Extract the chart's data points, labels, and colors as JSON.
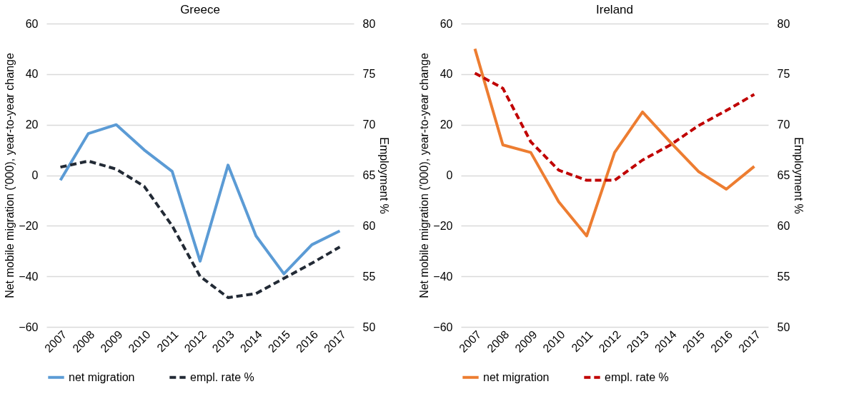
{
  "chart_data": [
    {
      "type": "line",
      "title": "Greece",
      "categories": [
        "2007",
        "2008",
        "2009",
        "2010",
        "2011",
        "2012",
        "2013",
        "2014",
        "2015",
        "2016",
        "2017"
      ],
      "ylabel": "Net mobile migration ('000), year-to-year change",
      "y2label": "Employment %",
      "ylim": [
        -60,
        60
      ],
      "yticks": [
        -60,
        -40,
        -20,
        0,
        20,
        40,
        60
      ],
      "y2lim": [
        50,
        80
      ],
      "y2ticks": [
        50,
        55,
        60,
        65,
        70,
        75,
        80
      ],
      "grid": "y",
      "legend": "bottom",
      "series": [
        {
          "name": "net migration",
          "color": "#5b9bd5",
          "line_style": "solid",
          "values": [
            -2,
            16.5,
            20,
            10,
            1.5,
            -34,
            4,
            -24,
            -39,
            -27.5,
            -22
          ]
        },
        {
          "name": "empl. rate %",
          "color": "#222a35",
          "line_style": "dashed",
          "axis": "y2",
          "values": [
            65.8,
            66.4,
            65.6,
            63.9,
            60,
            55,
            52.9,
            53.3,
            54.8,
            56.3,
            57.9
          ]
        }
      ]
    },
    {
      "type": "line",
      "title": "Ireland",
      "categories": [
        "2007",
        "2008",
        "2009",
        "2010",
        "2011",
        "2012",
        "2013",
        "2014",
        "2015",
        "2016",
        "2017"
      ],
      "ylabel": "Net mobile migration ('000), year-to-year change",
      "y2label": "Employment %",
      "ylim": [
        -60,
        60
      ],
      "yticks": [
        -60,
        -40,
        -20,
        0,
        20,
        40,
        60
      ],
      "y2lim": [
        50,
        80
      ],
      "y2ticks": [
        50,
        55,
        60,
        65,
        70,
        75,
        80
      ],
      "grid": "y",
      "legend": "bottom",
      "series": [
        {
          "name": "net migration",
          "color": "#ed7d31",
          "line_style": "solid",
          "values": [
            50,
            12,
            9,
            -10.5,
            -24,
            9,
            25,
            13,
            1.5,
            -5.5,
            3.5
          ]
        },
        {
          "name": "empl. rate %",
          "color": "#c00000",
          "line_style": "dashed",
          "axis": "y2",
          "values": [
            75.1,
            73.6,
            68.3,
            65.5,
            64.5,
            64.5,
            66.5,
            68,
            69.9,
            71.4,
            73
          ]
        }
      ]
    }
  ]
}
